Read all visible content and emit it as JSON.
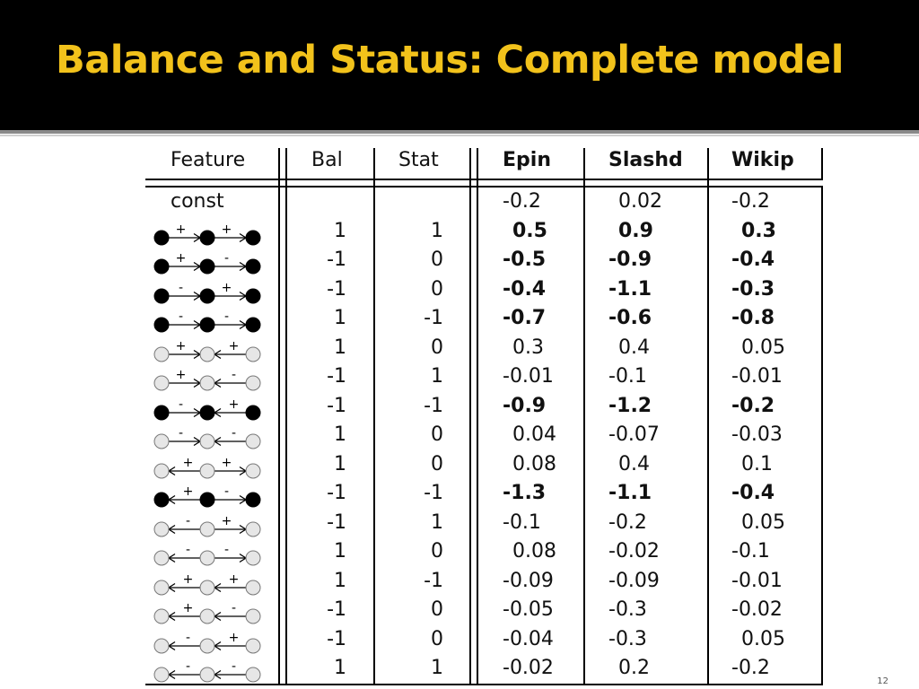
{
  "slide": {
    "title": "Balance and Status: Complete model",
    "page_number": "12"
  },
  "table": {
    "headers": [
      "Feature",
      "Bal",
      "Stat",
      "Epin",
      "Slashd",
      "Wikip"
    ],
    "bold_headers": [
      false,
      false,
      false,
      true,
      true,
      true
    ],
    "const_label": "const",
    "rows": [
      {
        "feature": "const",
        "bal": "",
        "stat": "",
        "epin": "-0.2",
        "slashd": "0.02",
        "wikip": "-0.2",
        "bold": false
      },
      {
        "feature": {
          "filled": true,
          "left": {
            "dir": "right",
            "sign": "+"
          },
          "right": {
            "dir": "right",
            "sign": "+"
          }
        },
        "bal": "1",
        "stat": "1",
        "epin": "0.5",
        "slashd": "0.9",
        "wikip": "0.3",
        "bold": true
      },
      {
        "feature": {
          "filled": true,
          "left": {
            "dir": "right",
            "sign": "+"
          },
          "right": {
            "dir": "right",
            "sign": "-"
          }
        },
        "bal": "-1",
        "stat": "0",
        "epin": "-0.5",
        "slashd": "-0.9",
        "wikip": "-0.4",
        "bold": true
      },
      {
        "feature": {
          "filled": true,
          "left": {
            "dir": "right",
            "sign": "-"
          },
          "right": {
            "dir": "right",
            "sign": "+"
          }
        },
        "bal": "-1",
        "stat": "0",
        "epin": "-0.4",
        "slashd": "-1.1",
        "wikip": "-0.3",
        "bold": true
      },
      {
        "feature": {
          "filled": true,
          "left": {
            "dir": "right",
            "sign": "-"
          },
          "right": {
            "dir": "right",
            "sign": "-"
          }
        },
        "bal": "1",
        "stat": "-1",
        "epin": "-0.7",
        "slashd": "-0.6",
        "wikip": "-0.8",
        "bold": true
      },
      {
        "feature": {
          "filled": false,
          "left": {
            "dir": "right",
            "sign": "+"
          },
          "right": {
            "dir": "left",
            "sign": "+"
          }
        },
        "bal": "1",
        "stat": "0",
        "epin": "0.3",
        "slashd": "0.4",
        "wikip": "0.05",
        "bold": false
      },
      {
        "feature": {
          "filled": false,
          "left": {
            "dir": "right",
            "sign": "+"
          },
          "right": {
            "dir": "left",
            "sign": "-"
          }
        },
        "bal": "-1",
        "stat": "1",
        "epin": "-0.01",
        "slashd": "-0.1",
        "wikip": "-0.01",
        "bold": false
      },
      {
        "feature": {
          "filled": true,
          "left": {
            "dir": "right",
            "sign": "-"
          },
          "right": {
            "dir": "left",
            "sign": "+"
          }
        },
        "bal": "-1",
        "stat": "-1",
        "epin": "-0.9",
        "slashd": "-1.2",
        "wikip": "-0.2",
        "bold": true
      },
      {
        "feature": {
          "filled": false,
          "left": {
            "dir": "right",
            "sign": "-"
          },
          "right": {
            "dir": "left",
            "sign": "-"
          }
        },
        "bal": "1",
        "stat": "0",
        "epin": "0.04",
        "slashd": "-0.07",
        "wikip": "-0.03",
        "bold": false
      },
      {
        "feature": {
          "filled": false,
          "left": {
            "dir": "left",
            "sign": "+"
          },
          "right": {
            "dir": "right",
            "sign": "+"
          }
        },
        "bal": "1",
        "stat": "0",
        "epin": "0.08",
        "slashd": "0.4",
        "wikip": "0.1",
        "bold": false
      },
      {
        "feature": {
          "filled": true,
          "left": {
            "dir": "left",
            "sign": "+"
          },
          "right": {
            "dir": "right",
            "sign": "-"
          }
        },
        "bal": "-1",
        "stat": "-1",
        "epin": "-1.3",
        "slashd": "-1.1",
        "wikip": "-0.4",
        "bold": true
      },
      {
        "feature": {
          "filled": false,
          "left": {
            "dir": "left",
            "sign": "-"
          },
          "right": {
            "dir": "right",
            "sign": "+"
          }
        },
        "bal": "-1",
        "stat": "1",
        "epin": "-0.1",
        "slashd": "-0.2",
        "wikip": "0.05",
        "bold": false
      },
      {
        "feature": {
          "filled": false,
          "left": {
            "dir": "left",
            "sign": "-"
          },
          "right": {
            "dir": "right",
            "sign": "-"
          }
        },
        "bal": "1",
        "stat": "0",
        "epin": "0.08",
        "slashd": "-0.02",
        "wikip": "-0.1",
        "bold": false
      },
      {
        "feature": {
          "filled": false,
          "left": {
            "dir": "left",
            "sign": "+"
          },
          "right": {
            "dir": "left",
            "sign": "+"
          }
        },
        "bal": "1",
        "stat": "-1",
        "epin": "-0.09",
        "slashd": "-0.09",
        "wikip": "-0.01",
        "bold": false
      },
      {
        "feature": {
          "filled": false,
          "left": {
            "dir": "left",
            "sign": "+"
          },
          "right": {
            "dir": "left",
            "sign": "-"
          }
        },
        "bal": "-1",
        "stat": "0",
        "epin": "-0.05",
        "slashd": "-0.3",
        "wikip": "-0.02",
        "bold": false
      },
      {
        "feature": {
          "filled": false,
          "left": {
            "dir": "left",
            "sign": "-"
          },
          "right": {
            "dir": "left",
            "sign": "+"
          }
        },
        "bal": "-1",
        "stat": "0",
        "epin": "-0.04",
        "slashd": "-0.3",
        "wikip": "0.05",
        "bold": false
      },
      {
        "feature": {
          "filled": false,
          "left": {
            "dir": "left",
            "sign": "-"
          },
          "right": {
            "dir": "left",
            "sign": "-"
          }
        },
        "bal": "1",
        "stat": "1",
        "epin": "-0.02",
        "slashd": "0.2",
        "wikip": "-0.2",
        "bold": false
      }
    ]
  },
  "colors": {
    "header_bg": "#000000",
    "title": "#f2c21b",
    "node_filled": "#000000",
    "node_empty": "#e6e6e6"
  }
}
